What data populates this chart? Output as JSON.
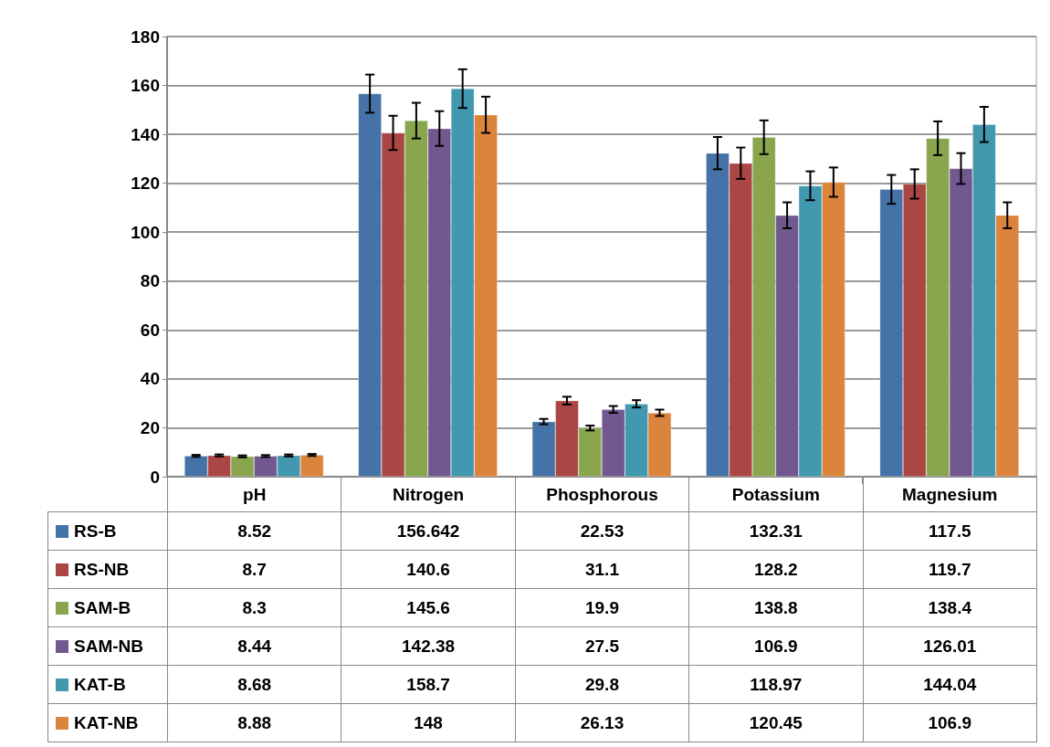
{
  "chart_data": {
    "type": "bar",
    "categories": [
      "pH",
      "Nitrogen",
      "Phosphorous",
      "Potassium",
      "Magnesium"
    ],
    "series": [
      {
        "name": "RS-B",
        "color": "#4572a7",
        "values": [
          8.52,
          156.642,
          22.53,
          132.31,
          117.5
        ],
        "errors": [
          0.4,
          7.8,
          1.1,
          6.6,
          5.9
        ]
      },
      {
        "name": "RS-NB",
        "color": "#aa4643",
        "values": [
          8.7,
          140.6,
          31.1,
          128.2,
          119.7
        ],
        "errors": [
          0.4,
          7.0,
          1.6,
          6.4,
          6.0
        ]
      },
      {
        "name": "SAM-B",
        "color": "#89a54e",
        "values": [
          8.3,
          145.6,
          19.9,
          138.8,
          138.4
        ],
        "errors": [
          0.4,
          7.3,
          1.0,
          6.9,
          6.9
        ]
      },
      {
        "name": "SAM-NB",
        "color": "#71588f",
        "values": [
          8.44,
          142.38,
          27.5,
          106.9,
          126.01
        ],
        "errors": [
          0.4,
          7.1,
          1.4,
          5.3,
          6.3
        ]
      },
      {
        "name": "KAT-B",
        "color": "#4198af",
        "values": [
          8.68,
          158.7,
          29.8,
          118.97,
          144.04
        ],
        "errors": [
          0.4,
          7.9,
          1.5,
          5.9,
          7.2
        ]
      },
      {
        "name": "KAT-NB",
        "color": "#db843d",
        "values": [
          8.88,
          148,
          26.13,
          120.45,
          106.9
        ],
        "errors": [
          0.4,
          7.4,
          1.3,
          6.0,
          5.3
        ]
      }
    ],
    "ylim": [
      0,
      180
    ],
    "yticks": [
      0,
      20,
      40,
      60,
      80,
      100,
      120,
      140,
      160,
      180
    ],
    "grid": "y",
    "legend": "bottom left",
    "data_labels": true
  }
}
